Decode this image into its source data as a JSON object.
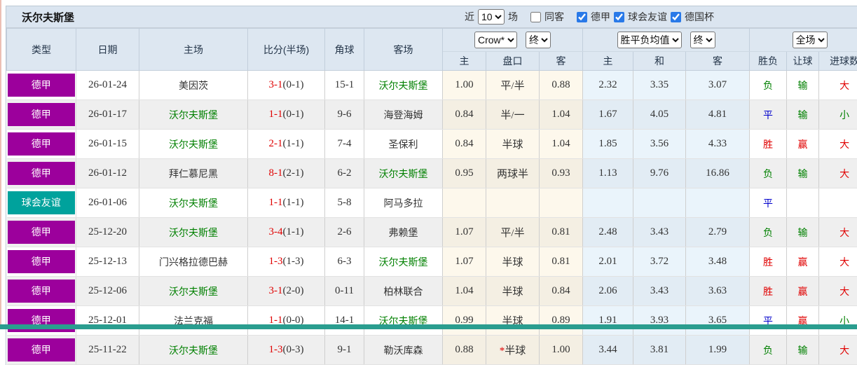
{
  "header": {
    "team": "沃尔夫斯堡",
    "recent_label": "近",
    "recent_count": "10",
    "matches_label": "场",
    "filters": [
      {
        "label": "同客",
        "checked": false
      },
      {
        "label": "德甲",
        "checked": true
      },
      {
        "label": "球会友谊",
        "checked": true
      },
      {
        "label": "德国杯",
        "checked": true
      }
    ]
  },
  "colors": {
    "league_purple": "#9c009c",
    "league_teal": "#00a29c",
    "win_red": "#e00000",
    "lose_green": "#008000",
    "draw_blue": "#0000cc",
    "header_bg": "#dde7f1",
    "odds_bg": "#fdf8ec",
    "mean_bg": "#eaf4fb",
    "bottom_bar": "#2a9d8f"
  },
  "table": {
    "left_columns": [
      "类型",
      "日期",
      "主场",
      "比分(半场)",
      "角球",
      "客场"
    ],
    "groups": {
      "odds": {
        "company_select": "Crow*",
        "stage_select": "终",
        "cols": [
          "主",
          "盘口",
          "客"
        ]
      },
      "mean": {
        "type_select": "胜平负均值",
        "stage_select": "终",
        "cols": [
          "主",
          "和",
          "客"
        ]
      },
      "result": {
        "scope_select": "全场",
        "cols": [
          "胜负",
          "让球",
          "进球数"
        ]
      }
    },
    "rows": [
      {
        "league": "德甲",
        "league_color": "purple",
        "date": "26-01-24",
        "home": {
          "name": "美因茨",
          "highlight": false
        },
        "score": {
          "full": "3-1",
          "half": "(0-1)"
        },
        "corners": "15-1",
        "away": {
          "name": "沃尔夫斯堡",
          "highlight": true
        },
        "odds": {
          "home": "1.00",
          "handicap": "平/半",
          "star": false,
          "away": "0.88"
        },
        "mean": {
          "home": "2.32",
          "draw": "3.35",
          "away": "3.07"
        },
        "results": {
          "outcome": {
            "text": "负",
            "color": "green"
          },
          "handicap": {
            "text": "输",
            "color": "green"
          },
          "goals": {
            "text": "大",
            "color": "red"
          }
        }
      },
      {
        "league": "德甲",
        "league_color": "purple",
        "date": "26-01-17",
        "home": {
          "name": "沃尔夫斯堡",
          "highlight": true
        },
        "score": {
          "full": "1-1",
          "half": "(0-1)"
        },
        "corners": "9-6",
        "away": {
          "name": "海登海姆",
          "highlight": false
        },
        "odds": {
          "home": "0.84",
          "handicap": "半/一",
          "star": false,
          "away": "1.04"
        },
        "mean": {
          "home": "1.67",
          "draw": "4.05",
          "away": "4.81"
        },
        "results": {
          "outcome": {
            "text": "平",
            "color": "blue"
          },
          "handicap": {
            "text": "输",
            "color": "green"
          },
          "goals": {
            "text": "小",
            "color": "green"
          }
        }
      },
      {
        "league": "德甲",
        "league_color": "purple",
        "date": "26-01-15",
        "home": {
          "name": "沃尔夫斯堡",
          "highlight": true
        },
        "score": {
          "full": "2-1",
          "half": "(1-1)"
        },
        "corners": "7-4",
        "away": {
          "name": "圣保利",
          "highlight": false
        },
        "odds": {
          "home": "0.84",
          "handicap": "半球",
          "star": false,
          "away": "1.04"
        },
        "mean": {
          "home": "1.85",
          "draw": "3.56",
          "away": "4.33"
        },
        "results": {
          "outcome": {
            "text": "胜",
            "color": "red"
          },
          "handicap": {
            "text": "赢",
            "color": "red"
          },
          "goals": {
            "text": "大",
            "color": "red"
          }
        }
      },
      {
        "league": "德甲",
        "league_color": "purple",
        "date": "26-01-12",
        "home": {
          "name": "拜仁慕尼黑",
          "highlight": false
        },
        "score": {
          "full": "8-1",
          "half": "(2-1)"
        },
        "corners": "6-2",
        "away": {
          "name": "沃尔夫斯堡",
          "highlight": true
        },
        "odds": {
          "home": "0.95",
          "handicap": "两球半",
          "star": false,
          "away": "0.93"
        },
        "mean": {
          "home": "1.13",
          "draw": "9.76",
          "away": "16.86"
        },
        "results": {
          "outcome": {
            "text": "负",
            "color": "green"
          },
          "handicap": {
            "text": "输",
            "color": "green"
          },
          "goals": {
            "text": "大",
            "color": "red"
          }
        }
      },
      {
        "league": "球会友谊",
        "league_color": "teal",
        "date": "26-01-06",
        "home": {
          "name": "沃尔夫斯堡",
          "highlight": true
        },
        "score": {
          "full": "1-1",
          "half": "(1-1)"
        },
        "corners": "5-8",
        "away": {
          "name": "阿马多拉",
          "highlight": false
        },
        "odds": {
          "home": "",
          "handicap": "",
          "star": false,
          "away": ""
        },
        "mean": {
          "home": "",
          "draw": "",
          "away": ""
        },
        "results": {
          "outcome": {
            "text": "平",
            "color": "blue"
          },
          "handicap": {
            "text": "",
            "color": ""
          },
          "goals": {
            "text": "",
            "color": ""
          }
        }
      },
      {
        "league": "德甲",
        "league_color": "purple",
        "date": "25-12-20",
        "home": {
          "name": "沃尔夫斯堡",
          "highlight": true
        },
        "score": {
          "full": "3-4",
          "half": "(1-1)"
        },
        "corners": "2-6",
        "away": {
          "name": "弗赖堡",
          "highlight": false
        },
        "odds": {
          "home": "1.07",
          "handicap": "平/半",
          "star": false,
          "away": "0.81"
        },
        "mean": {
          "home": "2.48",
          "draw": "3.43",
          "away": "2.79"
        },
        "results": {
          "outcome": {
            "text": "负",
            "color": "green"
          },
          "handicap": {
            "text": "输",
            "color": "green"
          },
          "goals": {
            "text": "大",
            "color": "red"
          }
        }
      },
      {
        "league": "德甲",
        "league_color": "purple",
        "date": "25-12-13",
        "home": {
          "name": "门兴格拉德巴赫",
          "highlight": false
        },
        "score": {
          "full": "1-3",
          "half": "(1-3)"
        },
        "corners": "6-3",
        "away": {
          "name": "沃尔夫斯堡",
          "highlight": true
        },
        "odds": {
          "home": "1.07",
          "handicap": "半球",
          "star": false,
          "away": "0.81"
        },
        "mean": {
          "home": "2.01",
          "draw": "3.72",
          "away": "3.48"
        },
        "results": {
          "outcome": {
            "text": "胜",
            "color": "red"
          },
          "handicap": {
            "text": "赢",
            "color": "red"
          },
          "goals": {
            "text": "大",
            "color": "red"
          }
        }
      },
      {
        "league": "德甲",
        "league_color": "purple",
        "date": "25-12-06",
        "home": {
          "name": "沃尔夫斯堡",
          "highlight": true
        },
        "score": {
          "full": "3-1",
          "half": "(2-0)"
        },
        "corners": "0-11",
        "away": {
          "name": "柏林联合",
          "highlight": false
        },
        "odds": {
          "home": "1.04",
          "handicap": "半球",
          "star": false,
          "away": "0.84"
        },
        "mean": {
          "home": "2.06",
          "draw": "3.43",
          "away": "3.63"
        },
        "results": {
          "outcome": {
            "text": "胜",
            "color": "red"
          },
          "handicap": {
            "text": "赢",
            "color": "red"
          },
          "goals": {
            "text": "大",
            "color": "red"
          }
        }
      },
      {
        "league": "德甲",
        "league_color": "purple",
        "date": "25-12-01",
        "home": {
          "name": "法兰克福",
          "highlight": false
        },
        "score": {
          "full": "1-1",
          "half": "(0-0)"
        },
        "corners": "14-1",
        "away": {
          "name": "沃尔夫斯堡",
          "highlight": true
        },
        "odds": {
          "home": "0.99",
          "handicap": "半球",
          "star": false,
          "away": "0.89"
        },
        "mean": {
          "home": "1.91",
          "draw": "3.93",
          "away": "3.65"
        },
        "results": {
          "outcome": {
            "text": "平",
            "color": "blue"
          },
          "handicap": {
            "text": "赢",
            "color": "red"
          },
          "goals": {
            "text": "小",
            "color": "green"
          }
        }
      },
      {
        "league": "德甲",
        "league_color": "purple",
        "date": "25-11-22",
        "home": {
          "name": "沃尔夫斯堡",
          "highlight": true
        },
        "score": {
          "full": "1-3",
          "half": "(0-3)"
        },
        "corners": "9-1",
        "away": {
          "name": "勒沃库森",
          "highlight": false
        },
        "odds": {
          "home": "0.88",
          "handicap": "半球",
          "star": true,
          "away": "1.00"
        },
        "mean": {
          "home": "3.44",
          "draw": "3.81",
          "away": "1.99"
        },
        "results": {
          "outcome": {
            "text": "负",
            "color": "green"
          },
          "handicap": {
            "text": "输",
            "color": "green"
          },
          "goals": {
            "text": "大",
            "color": "red"
          }
        }
      }
    ]
  }
}
